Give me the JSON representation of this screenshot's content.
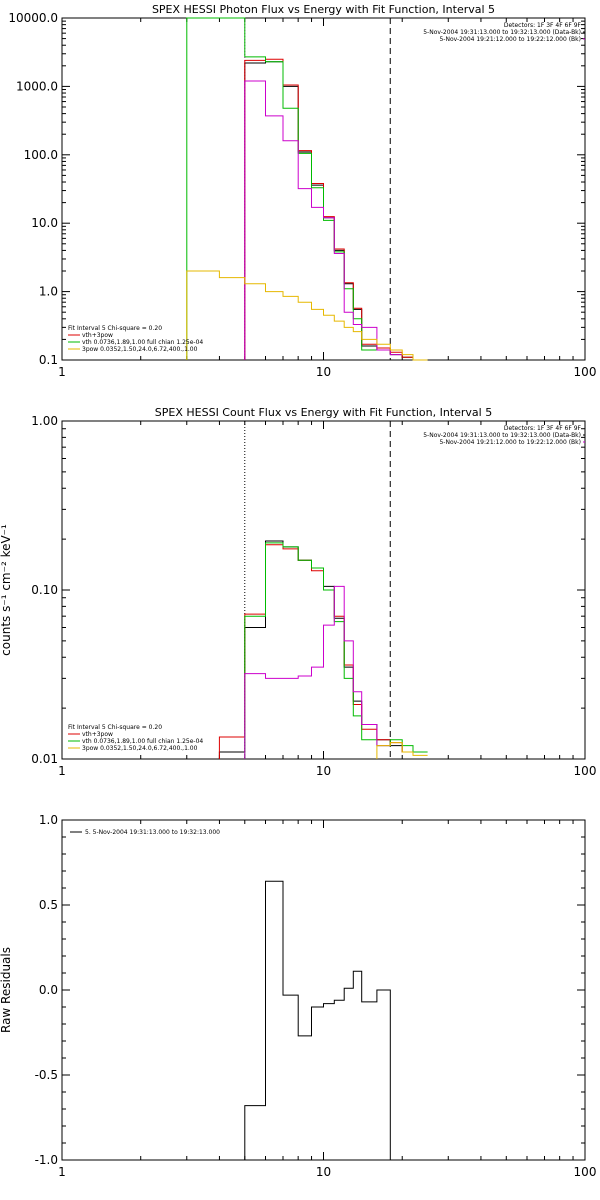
{
  "chart_data": [
    {
      "type": "line",
      "title": "SPEX HESSI Photon Flux vs Energy with Fit Function, Interval 5",
      "xlabel": "",
      "ylabel": "",
      "xscale": "log",
      "yscale": "log",
      "xlim": [
        1,
        100
      ],
      "ylim": [
        0.1,
        10000
      ],
      "x_ticks": [
        "1",
        "10",
        "100"
      ],
      "y_ticks": [
        "0.1",
        "1.0",
        "10.0",
        "100.0",
        "1000.0",
        "10000.0"
      ],
      "vlines": [
        {
          "x": 5.0,
          "style": "dotted",
          "color": "#cc00cc"
        },
        {
          "x": 18.0,
          "style": "dashed",
          "color": "#000000"
        }
      ],
      "header_lines": [
        "Detectors: 1F 3F 4F 6F 9F",
        "5-Nov-2004 19:31:13.000 to 19:32:13.000 (Data-Bk)",
        "5-Nov-2004 19:21:12.000 to 19:22:12.000 (Bk)"
      ],
      "fit_lines": [
        "Fit Interval 5   Chi-square = 0.20",
        "vth+3pow",
        "vth 0.0736,1.89,1.00  full chian 1.25e-04",
        "3pow 0.0352,1.50,24.0,6.72,400.,1.00"
      ],
      "series": [
        {
          "color": "#000000",
          "edges": [
            5,
            6,
            7,
            8,
            9,
            10,
            11,
            12,
            13,
            14,
            16,
            18,
            20,
            22
          ],
          "values": [
            2200,
            2300,
            1000,
            110,
            36,
            12,
            4,
            1.3,
            0.55,
            0.16,
            0.14,
            0.12,
            0.11
          ]
        },
        {
          "color": "#dd0000",
          "edges": [
            5,
            6,
            7,
            8,
            9,
            10,
            11,
            12,
            13,
            14,
            16,
            18,
            20,
            22
          ],
          "values": [
            2400,
            2500,
            1050,
            115,
            38,
            12.5,
            4.2,
            1.35,
            0.57,
            0.17,
            0.15,
            0.13,
            0.11
          ]
        },
        {
          "color": "#00bb00",
          "edges": [
            3,
            5,
            6,
            7,
            8,
            9,
            10,
            11,
            12,
            13,
            14,
            16
          ],
          "values": [
            10000,
            2700,
            2300,
            480,
            105,
            33,
            11,
            3.8,
            1.1,
            0.4,
            0.14
          ]
        },
        {
          "color": "#cc00cc",
          "edges": [
            5,
            6,
            7,
            8,
            9,
            10,
            11,
            12,
            13,
            14,
            16,
            18,
            20
          ],
          "values": [
            1200,
            370,
            160,
            32,
            17,
            12,
            3.6,
            0.5,
            0.33,
            0.3,
            0.14,
            0.12
          ]
        },
        {
          "color": "#e6b800",
          "edges": [
            3,
            4,
            5,
            6,
            7,
            8,
            9,
            10,
            11,
            12,
            13,
            14,
            16,
            18,
            20,
            22,
            25
          ],
          "values": [
            2,
            1.6,
            1.3,
            1,
            0.85,
            0.7,
            0.55,
            0.45,
            0.37,
            0.3,
            0.26,
            0.2,
            0.17,
            0.14,
            0.12,
            0.1
          ]
        }
      ]
    },
    {
      "type": "line",
      "title": "SPEX HESSI Count Flux vs Energy with Fit Function, Interval 5",
      "xlabel": "",
      "ylabel": "counts s⁻¹ cm⁻² keV⁻¹",
      "xscale": "log",
      "yscale": "log",
      "xlim": [
        1,
        100
      ],
      "ylim": [
        0.01,
        1
      ],
      "x_ticks": [
        "1",
        "10",
        "100"
      ],
      "y_ticks": [
        "0.01",
        "0.10",
        "1.00"
      ],
      "vlines": [
        {
          "x": 5.0,
          "style": "dotted",
          "color": "#000000"
        },
        {
          "x": 18.0,
          "style": "dashed",
          "color": "#000000"
        }
      ],
      "header_lines": [
        "Detectors: 1F 3F 4F 6F 9F",
        "5-Nov-2004 19:31:13.000 to 19:32:13.000 (Data-Bk)",
        "5-Nov-2004 19:21:12.000 to 19:22:12.000 (Bk)"
      ],
      "fit_lines": [
        "Fit Interval 5   Chi-square = 0.20",
        "vth+3pow",
        "vth 0.0736,1.89,1.00  full chian 1.25e-04",
        "3pow 0.0352,1.50,24.0,6.72,400.,1.00"
      ],
      "series": [
        {
          "color": "#000000",
          "edges": [
            4,
            5,
            6,
            7,
            8,
            9,
            10,
            11,
            12,
            13,
            14,
            16,
            18,
            20,
            22
          ],
          "values": [
            0.011,
            0.06,
            0.195,
            0.18,
            0.15,
            0.135,
            0.105,
            0.068,
            0.035,
            0.022,
            0.016,
            0.013,
            0.012,
            0.011
          ]
        },
        {
          "color": "#dd0000",
          "edges": [
            4,
            5,
            6,
            7,
            8,
            9,
            10,
            11,
            12,
            13,
            14,
            16,
            18,
            20,
            22
          ],
          "values": [
            0.0135,
            0.072,
            0.185,
            0.175,
            0.15,
            0.13,
            0.1,
            0.07,
            0.036,
            0.021,
            0.015,
            0.013,
            0.0125,
            0.011
          ]
        },
        {
          "color": "#00bb00",
          "edges": [
            5,
            6,
            7,
            8,
            9,
            10,
            11,
            12,
            13,
            14,
            16,
            18,
            20,
            22,
            25
          ],
          "values": [
            0.07,
            0.19,
            0.18,
            0.15,
            0.135,
            0.1,
            0.065,
            0.03,
            0.018,
            0.013,
            0.012,
            0.013,
            0.012,
            0.011
          ]
        },
        {
          "color": "#cc00cc",
          "edges": [
            5,
            6,
            7,
            8,
            9,
            10,
            11,
            12,
            13,
            14,
            16,
            18
          ],
          "values": [
            0.032,
            0.03,
            0.03,
            0.031,
            0.035,
            0.062,
            0.105,
            0.05,
            0.025,
            0.016,
            0.012
          ]
        },
        {
          "color": "#e6b800",
          "edges": [
            16,
            18,
            20,
            22,
            25
          ],
          "values": [
            0.012,
            0.0125,
            0.011,
            0.0105
          ]
        }
      ]
    },
    {
      "type": "line",
      "title": "",
      "xlabel": "",
      "ylabel": "Raw Residuals",
      "xscale": "log",
      "yscale": "linear",
      "xlim": [
        1,
        100
      ],
      "ylim": [
        -1,
        1
      ],
      "x_ticks": [
        "1",
        "10",
        "100"
      ],
      "y_ticks": [
        "-1.0",
        "-0.5",
        "0.0",
        "0.5",
        "1.0"
      ],
      "legend": "5. 5-Nov-2004 19:31:13.000 to 19:32:13.000",
      "series": [
        {
          "color": "#000000",
          "edges": [
            5,
            6,
            7,
            8,
            9,
            10,
            11,
            12,
            13,
            14,
            16,
            18
          ],
          "values": [
            -0.68,
            0.64,
            -0.03,
            -0.27,
            -0.1,
            -0.08,
            -0.06,
            0.01,
            0.11,
            -0.07,
            0.0
          ]
        }
      ]
    }
  ]
}
